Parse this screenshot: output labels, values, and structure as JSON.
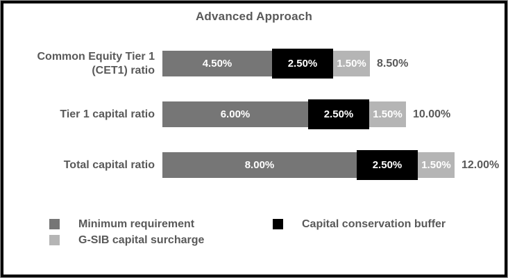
{
  "title": "Advanced Approach",
  "colors": {
    "minimum_requirement": "#767676",
    "capital_conservation_buffer": "#000000",
    "gsib_capital_surcharge": "#b5b5b5",
    "label_text": "#595959",
    "segment_value_text": "#ffffff",
    "frame_border": "#000000"
  },
  "chart_data": {
    "type": "bar",
    "orientation": "horizontal",
    "stacked": true,
    "title": "Advanced Approach",
    "categories": [
      "Common Equity Tier 1 (CET1) ratio",
      "Tier 1 capital ratio",
      "Total capital ratio"
    ],
    "category_label_lines": [
      [
        "Common Equity Tier 1",
        "(CET1) ratio"
      ],
      [
        "Tier 1 capital ratio"
      ],
      [
        "Total capital ratio"
      ]
    ],
    "series": [
      {
        "name": "Minimum requirement",
        "color": "#767676",
        "values": [
          4.5,
          6.0,
          8.0
        ],
        "labels": [
          "4.50%",
          "6.00%",
          "8.00%"
        ]
      },
      {
        "name": "Capital conservation buffer",
        "color": "#000000",
        "values": [
          2.5,
          2.5,
          2.5
        ],
        "labels": [
          "2.50%",
          "2.50%",
          "2.50%"
        ]
      },
      {
        "name": "G-SIB capital surcharge",
        "color": "#b5b5b5",
        "values": [
          1.5,
          1.5,
          1.5
        ],
        "labels": [
          "1.50%",
          "1.50%",
          "1.50%"
        ]
      }
    ],
    "totals": [
      "8.50%",
      "10.00%",
      "12.00%"
    ],
    "total_values": [
      8.5,
      10.0,
      12.0
    ],
    "xlim": [
      0,
      12
    ],
    "grid": false,
    "legend_position": "bottom",
    "legend_columns": {
      "left": [
        "Minimum requirement",
        "G-SIB capital surcharge"
      ],
      "right": [
        "Capital conservation buffer"
      ]
    }
  }
}
